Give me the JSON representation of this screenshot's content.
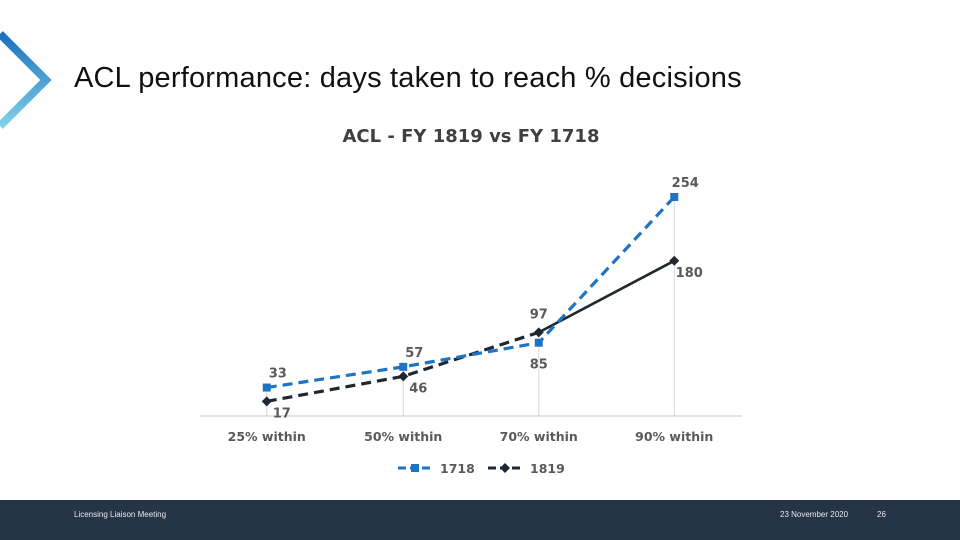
{
  "slide": {
    "title": "ACL performance: days taken to reach % decisions"
  },
  "footer": {
    "left_text": "Licensing Liaison Meeting",
    "date": "23 November 2020",
    "page_number": "26"
  },
  "colors": {
    "accent_blue": "#1f73c4",
    "dark_series": "#1f2732",
    "footer_bg": "#253447",
    "chevron": "#2a8bd0"
  },
  "chart_data": {
    "type": "line",
    "title": "ACL - FY 1819 vs FY 1718",
    "categories": [
      "25% within",
      "50% within",
      "70% within",
      "90% within"
    ],
    "series": [
      {
        "name": "1718",
        "values": [
          33,
          57,
          85,
          254
        ],
        "color": "#1f73c4",
        "dash": "dashed",
        "marker": "square"
      },
      {
        "name": "1819",
        "values": [
          17,
          46,
          97,
          180
        ],
        "color": "#1f2732",
        "dash": "dashed-then-solid",
        "marker": "diamond"
      }
    ],
    "ylim": [
      0,
      280
    ],
    "grid": "vertical-lines-at-categories",
    "legend": "bottom"
  }
}
